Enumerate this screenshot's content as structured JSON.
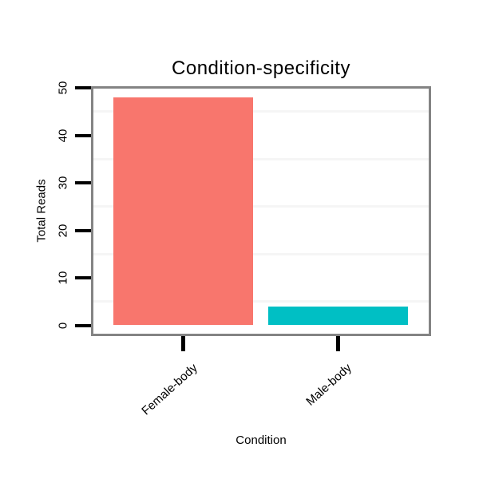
{
  "chart_data": {
    "type": "bar",
    "title": "Condition-specificity",
    "xlabel": "Condition",
    "ylabel": "Total Reads",
    "categories": [
      "Female-body",
      "Male-body"
    ],
    "values": [
      48,
      4
    ],
    "bar_colors": [
      "#F8766D",
      "#00BFC4"
    ],
    "ylim": [
      0,
      50
    ],
    "y_ticks": [
      0,
      10,
      20,
      30,
      40,
      50
    ],
    "y_minor_gridlines": [
      5,
      15,
      25,
      35,
      45
    ],
    "grid": "faint horizontal minor gridlines only, white panel background",
    "legend": "none",
    "x_tick_label_rotation_deg": 45
  },
  "style": {
    "panel_border_color": "#848484",
    "tick_color": "#000000",
    "minor_gridline_color": "#F5F5F5",
    "background_color": "#FFFFFF",
    "text_color": "#000000"
  }
}
